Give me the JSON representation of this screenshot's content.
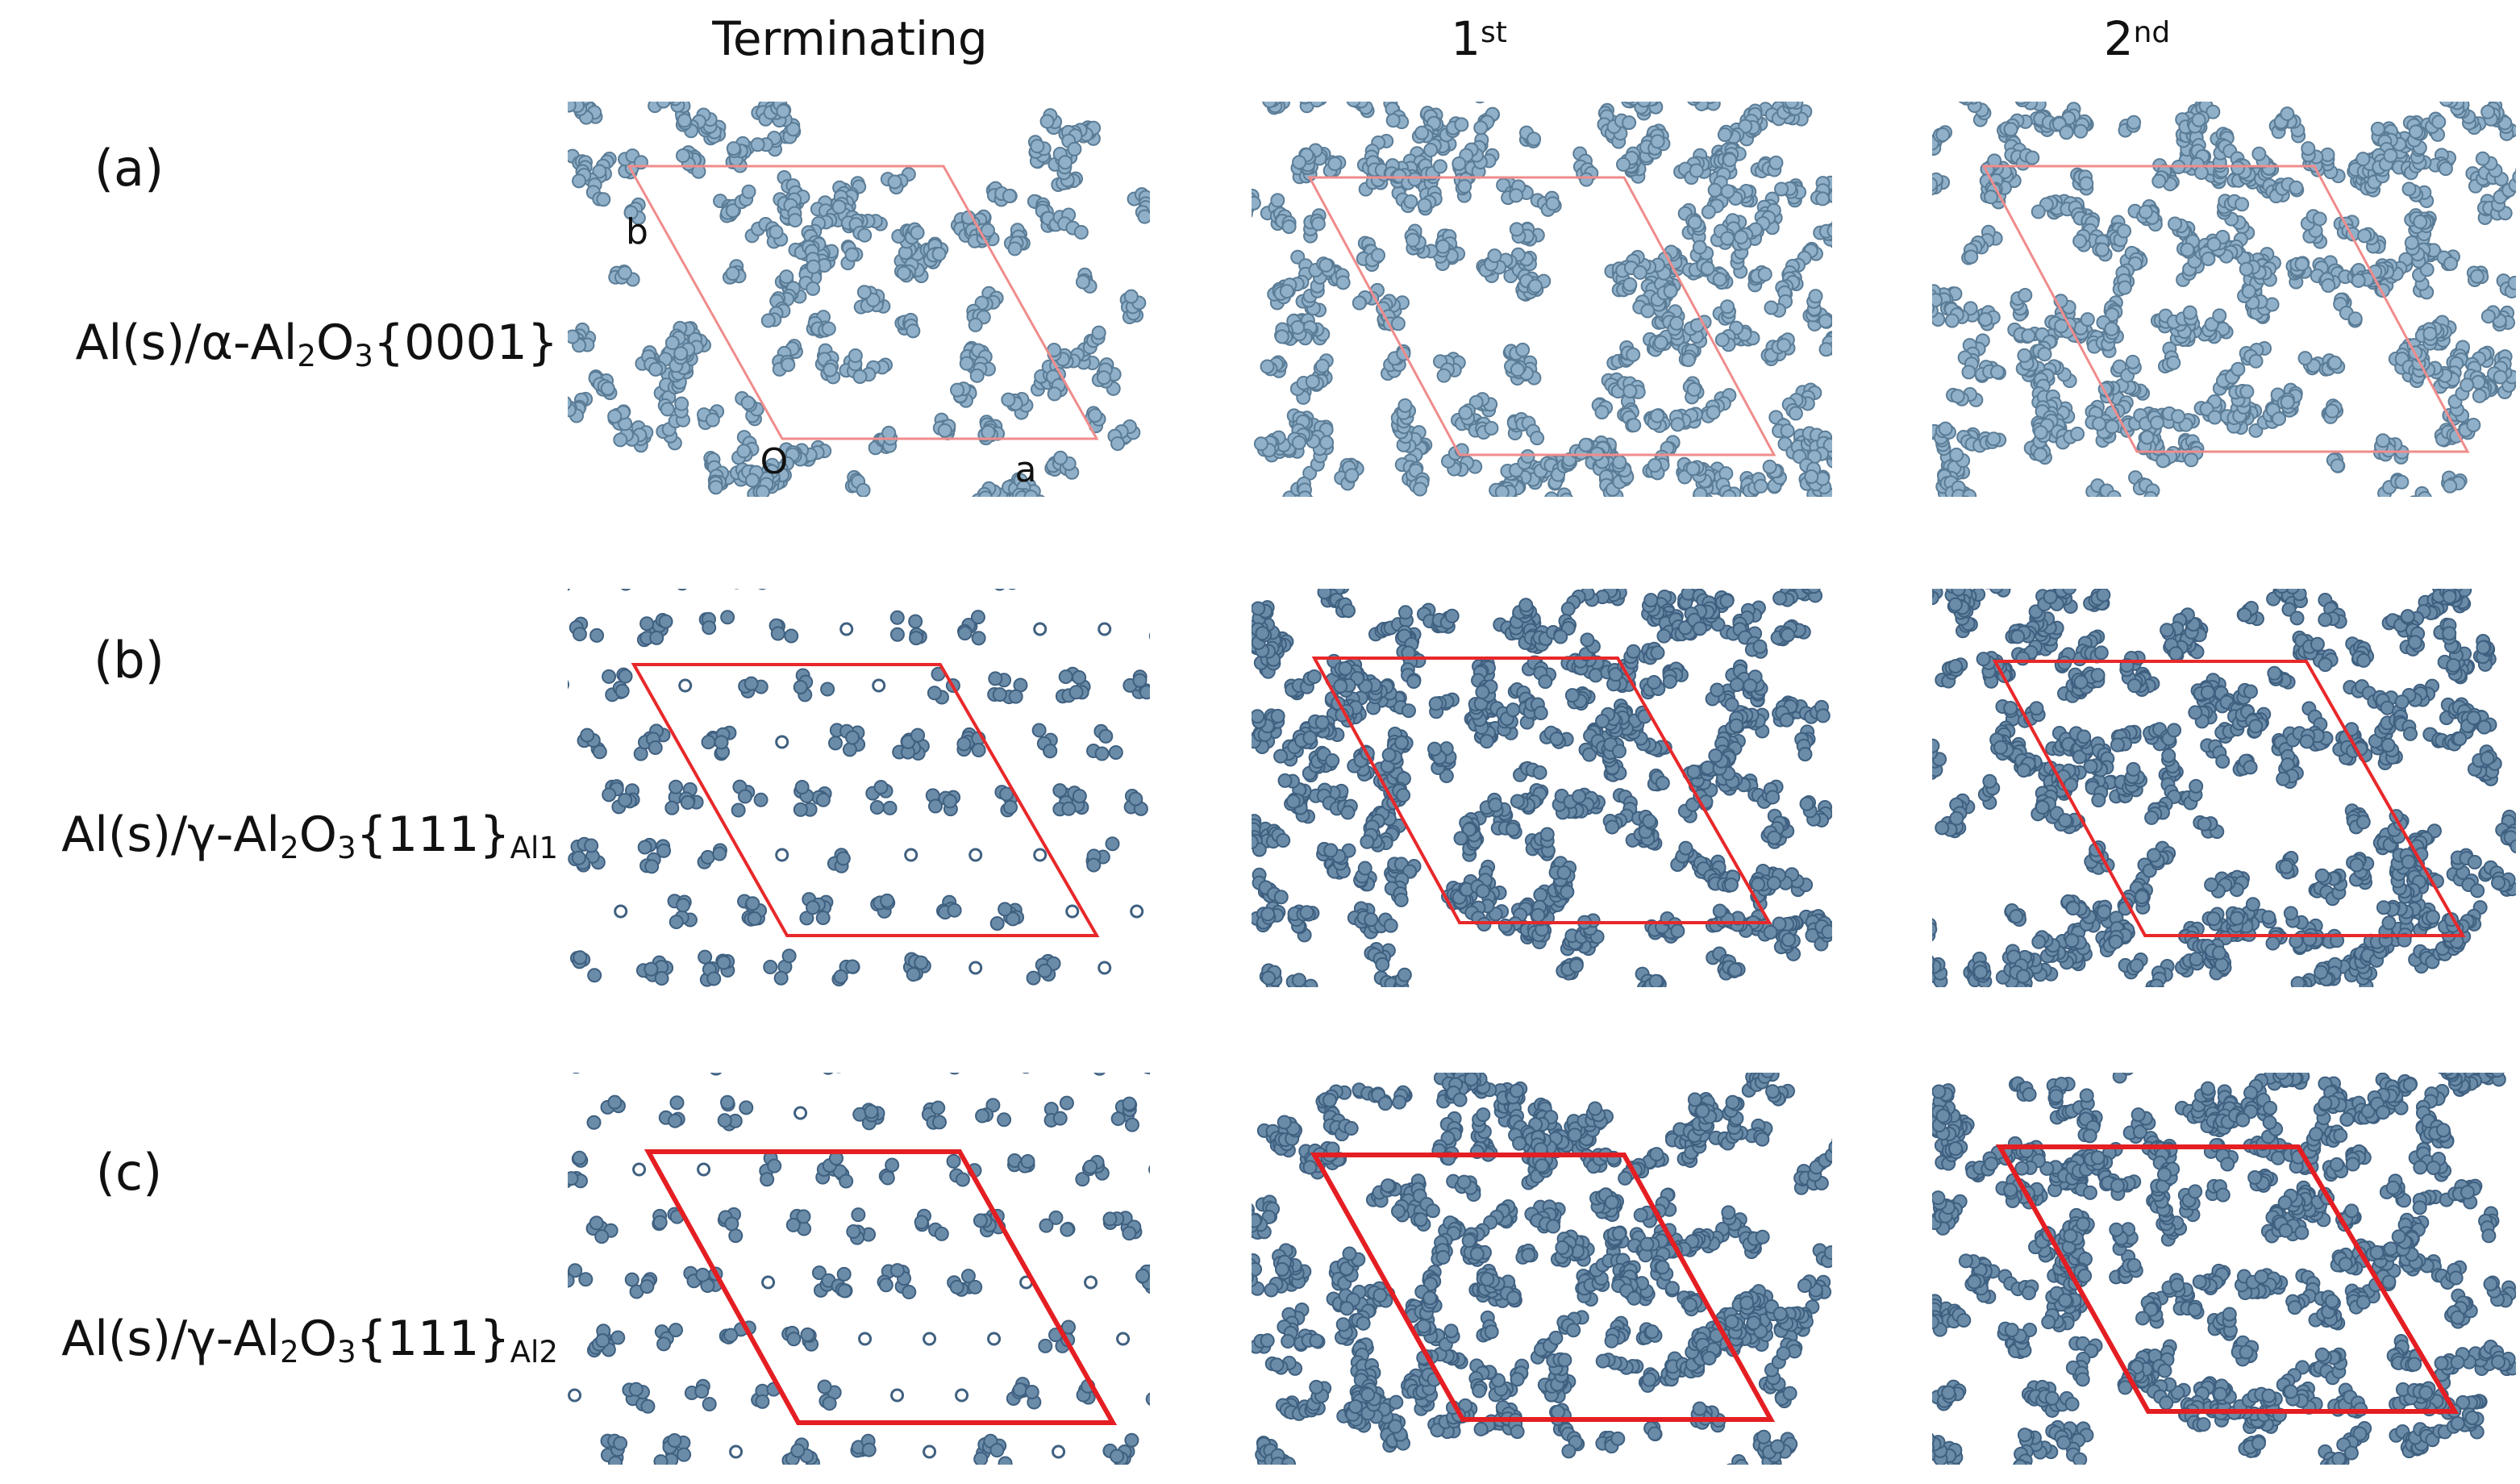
{
  "columns": [
    {
      "parts": [
        {
          "t": "Terminating"
        }
      ]
    },
    {
      "parts": [
        {
          "t": "1"
        },
        {
          "t": "st",
          "pos": "sup"
        }
      ]
    },
    {
      "parts": [
        {
          "t": "2"
        },
        {
          "t": "nd",
          "pos": "sup"
        }
      ]
    }
  ],
  "rows": [
    {
      "tag": "(a)",
      "label": [
        {
          "t": "Al(s)/α-Al"
        },
        {
          "t": "2",
          "pos": "sub"
        },
        {
          "t": "O"
        },
        {
          "t": "3",
          "pos": "sub"
        },
        {
          "t": "{0001}"
        }
      ]
    },
    {
      "tag": "(b)",
      "label": [
        {
          "t": "Al(s)/γ-Al"
        },
        {
          "t": "2",
          "pos": "sub"
        },
        {
          "t": "O"
        },
        {
          "t": "3",
          "pos": "sub"
        },
        {
          "t": "{111}"
        },
        {
          "t": "Al1",
          "pos": "sub"
        }
      ]
    },
    {
      "tag": "(c)",
      "label": [
        {
          "t": "Al(s)/γ-Al"
        },
        {
          "t": "2",
          "pos": "sub"
        },
        {
          "t": "O"
        },
        {
          "t": "3",
          "pos": "sub"
        },
        {
          "t": "{111}"
        },
        {
          "t": "Al2",
          "pos": "sub"
        }
      ]
    }
  ],
  "cell_labels": [
    "b",
    "O",
    "a"
  ]
}
